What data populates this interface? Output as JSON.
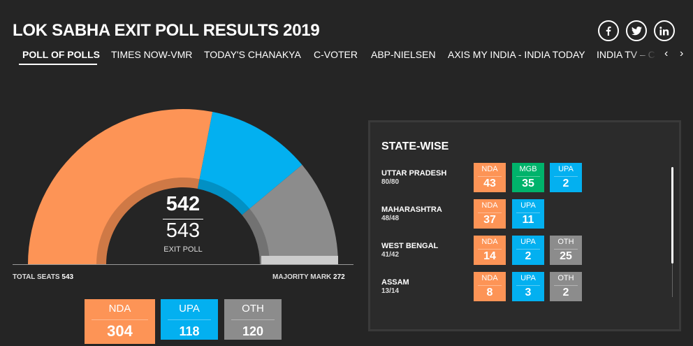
{
  "header": {
    "title": "LOK SABHA EXIT POLL RESULTS 2019",
    "social": [
      "facebook-icon",
      "twitter-icon",
      "linkedin-icon"
    ]
  },
  "tabs": [
    {
      "label": "POLL OF POLLS",
      "active": true
    },
    {
      "label": "TIMES NOW-VMR"
    },
    {
      "label": "TODAY'S CHANAKYA"
    },
    {
      "label": "C-VOTER"
    },
    {
      "label": "ABP-NIELSEN"
    },
    {
      "label": "AXIS MY INDIA - INDIA TODAY"
    },
    {
      "label": "INDIA TV – CNX"
    }
  ],
  "nav": {
    "prev": "‹",
    "next": "›"
  },
  "chart_data": {
    "type": "pie",
    "title": "LOK SABHA EXIT POLL RESULTS 2019",
    "categories": [
      "NDA",
      "UPA",
      "OTH"
    ],
    "values": [
      304,
      118,
      120
    ],
    "colors": [
      "#fd9456",
      "#03b0f0",
      "#8c8c8c"
    ],
    "total_seats": 543,
    "majority_mark": 272
  },
  "summary": {
    "exit_poll_total": "542",
    "total_seats": "543",
    "exit_poll_label": "EXIT POLL",
    "total_seats_label": "TOTAL SEATS",
    "total_seats_value": "543",
    "majority_label": "MAJORITY MARK",
    "majority_value": "272"
  },
  "alliances": [
    {
      "name": "NDA",
      "seats": "304",
      "color": "#fd9456"
    },
    {
      "name": "UPA",
      "seats": "118",
      "color": "#03b0f0"
    },
    {
      "name": "OTH",
      "seats": "120",
      "color": "#8c8c8c"
    }
  ],
  "statewise": {
    "title": "STATE-WISE",
    "states": [
      {
        "name": "UTTAR PRADESH",
        "seats": "80/80",
        "parties": [
          {
            "label": "NDA",
            "value": "43",
            "color": "#fd9456"
          },
          {
            "label": "MGB",
            "value": "35",
            "color": "#00b36b"
          },
          {
            "label": "UPA",
            "value": "2",
            "color": "#03b0f0"
          }
        ]
      },
      {
        "name": "MAHARASHTRA",
        "seats": "48/48",
        "parties": [
          {
            "label": "NDA",
            "value": "37",
            "color": "#fd9456"
          },
          {
            "label": "UPA",
            "value": "11",
            "color": "#03b0f0"
          }
        ]
      },
      {
        "name": "WEST BENGAL",
        "seats": "41/42",
        "parties": [
          {
            "label": "NDA",
            "value": "14",
            "color": "#fd9456"
          },
          {
            "label": "UPA",
            "value": "2",
            "color": "#03b0f0"
          },
          {
            "label": "OTH",
            "value": "25",
            "color": "#8c8c8c"
          }
        ]
      },
      {
        "name": "ASSAM",
        "seats": "13/14",
        "parties": [
          {
            "label": "NDA",
            "value": "8",
            "color": "#fd9456"
          },
          {
            "label": "UPA",
            "value": "3",
            "color": "#03b0f0"
          },
          {
            "label": "OTH",
            "value": "2",
            "color": "#8c8c8c"
          }
        ]
      }
    ]
  }
}
